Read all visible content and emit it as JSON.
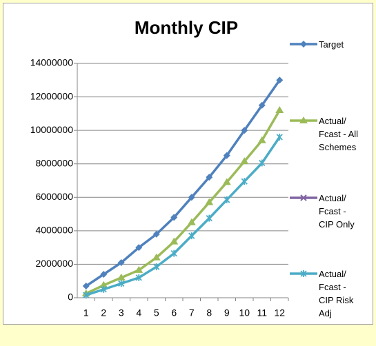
{
  "chart_data": {
    "type": "line",
    "title": "Monthly CIP",
    "categories": [
      "1",
      "2",
      "3",
      "4",
      "5",
      "6",
      "7",
      "8",
      "9",
      "10",
      "11",
      "12"
    ],
    "series": [
      {
        "name": "Target",
        "color": "#4f81bd",
        "marker": "diamond",
        "values": [
          700000,
          1400000,
          2100000,
          3000000,
          3800000,
          4800000,
          6000000,
          7200000,
          8500000,
          10000000,
          11500000,
          13000000
        ]
      },
      {
        "name": "Actual/ Fcast - All Schemes",
        "color": "#9bbb59",
        "marker": "triangle",
        "values": [
          250000,
          750000,
          1200000,
          1650000,
          2400000,
          3350000,
          4500000,
          5700000,
          6900000,
          8150000,
          9400000,
          11200000
        ]
      },
      {
        "name": "Actual/ Fcast - CIP Only",
        "color": "#8064a2",
        "marker": "x",
        "values": [
          null,
          null,
          null,
          null,
          null,
          null,
          null,
          null,
          null,
          null,
          null,
          null
        ]
      },
      {
        "name": "Actual/ Fcast - CIP Risk Adj",
        "color": "#4bacc6",
        "marker": "star",
        "values": [
          160000,
          500000,
          850000,
          1200000,
          1850000,
          2650000,
          3700000,
          4750000,
          5850000,
          6950000,
          8050000,
          9600000
        ]
      }
    ],
    "ylim": [
      0,
      14000000
    ],
    "yticks": [
      0,
      2000000,
      4000000,
      6000000,
      8000000,
      10000000,
      12000000,
      14000000
    ],
    "grid": true,
    "legend": "right"
  }
}
